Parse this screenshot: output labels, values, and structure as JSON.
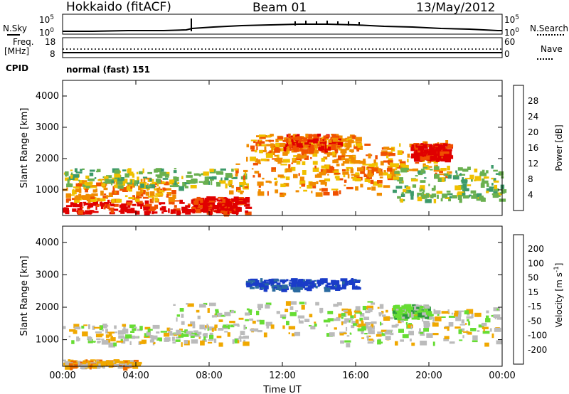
{
  "header": {
    "station": "Hokkaido (fitACF)",
    "beam": "Beam 01",
    "date": "13/May/2012"
  },
  "top_panels": {
    "nsky_label": "N.Sky",
    "nsearch_label": "N.Search",
    "nsky_ticks": [
      "10^5",
      "10^0"
    ],
    "nsearch_ticks": [
      "10^5",
      "10^0"
    ],
    "freq_label_1": "Freq.",
    "freq_label_2": "[MHz]",
    "freq_ticks": [
      "18",
      "8"
    ],
    "nave_label": "Nave",
    "nave_ticks": [
      "60",
      "0"
    ],
    "cpid_label": "CPID",
    "cpid_value": "normal (fast) 151"
  },
  "colors": {
    "power": [
      "#0000ff",
      "#1a4ea8",
      "#3c9a6a",
      "#6ab050",
      "#f0c000",
      "#f08c00",
      "#f05000",
      "#e00000"
    ],
    "velocity": [
      "#1a3cc8",
      "#2a6aa0",
      "#2a9a3a",
      "#66dd33",
      "#bbbbbb",
      "#f0a800",
      "#ee6a00",
      "#e82000",
      "#e00000"
    ]
  },
  "chart_data": [
    {
      "type": "heatmap",
      "name": "power",
      "ylabel": "Slant Range [km]",
      "xticks": [
        "00:00",
        "04:00",
        "08:00",
        "12:00",
        "16:00",
        "20:00",
        "00:00"
      ],
      "yticks": [
        "1000",
        "2000",
        "3000",
        "4000"
      ],
      "ylim": [
        180,
        4500
      ],
      "xlim": [
        0,
        24
      ],
      "colorbar_label": "Power [dB]",
      "colorbar_ticks": [
        "28",
        "24",
        "20",
        "16",
        "12",
        "8",
        "4"
      ],
      "regions": [
        {
          "t": [
            0,
            9
          ],
          "r": [
            300,
            700
          ],
          "level": 7
        },
        {
          "t": [
            0,
            6
          ],
          "r": [
            700,
            1400
          ],
          "level": 5
        },
        {
          "t": [
            0,
            10
          ],
          "r": [
            1100,
            1700
          ],
          "level": 3
        },
        {
          "t": [
            7,
            10
          ],
          "r": [
            300,
            800
          ],
          "level": 7
        },
        {
          "t": [
            9,
            18
          ],
          "r": [
            900,
            2000
          ],
          "level": 5
        },
        {
          "t": [
            10,
            16
          ],
          "r": [
            2000,
            2800
          ],
          "level": 5
        },
        {
          "t": [
            14,
            21
          ],
          "r": [
            1500,
            2600
          ],
          "level": 5
        },
        {
          "t": [
            18,
            24
          ],
          "r": [
            700,
            1800
          ],
          "level": 3
        },
        {
          "t": [
            19,
            21
          ],
          "r": [
            2000,
            2500
          ],
          "level": 7
        },
        {
          "t": [
            12,
            15
          ],
          "r": [
            2300,
            2800
          ],
          "level": 6
        }
      ]
    },
    {
      "type": "heatmap",
      "name": "velocity",
      "ylabel": "Slant Range [km]",
      "xlabel": "Time UT",
      "xticks": [
        "00:00",
        "04:00",
        "08:00",
        "12:00",
        "16:00",
        "20:00",
        "00:00"
      ],
      "yticks": [
        "1000",
        "2000",
        "3000",
        "4000"
      ],
      "ylim": [
        180,
        4500
      ],
      "xlim": [
        0,
        24
      ],
      "colorbar_label": "Velocity [m s^-1]",
      "colorbar_ticks": [
        "200",
        "100",
        "50",
        "15",
        "-15",
        "-50",
        "-100",
        "-200"
      ],
      "regions": [
        {
          "t": [
            0,
            10
          ],
          "r": [
            900,
            1500
          ],
          "level": 4
        },
        {
          "t": [
            6,
            18
          ],
          "r": [
            1200,
            2200
          ],
          "level": 4
        },
        {
          "t": [
            15,
            24
          ],
          "r": [
            900,
            2000
          ],
          "level": 4
        },
        {
          "t": [
            10,
            16
          ],
          "r": [
            2600,
            2900
          ],
          "level": 0
        },
        {
          "t": [
            18,
            20
          ],
          "r": [
            1700,
            2100
          ],
          "level": 3
        },
        {
          "t": [
            0,
            4
          ],
          "r": [
            200,
            400
          ],
          "level": 5
        }
      ]
    }
  ]
}
